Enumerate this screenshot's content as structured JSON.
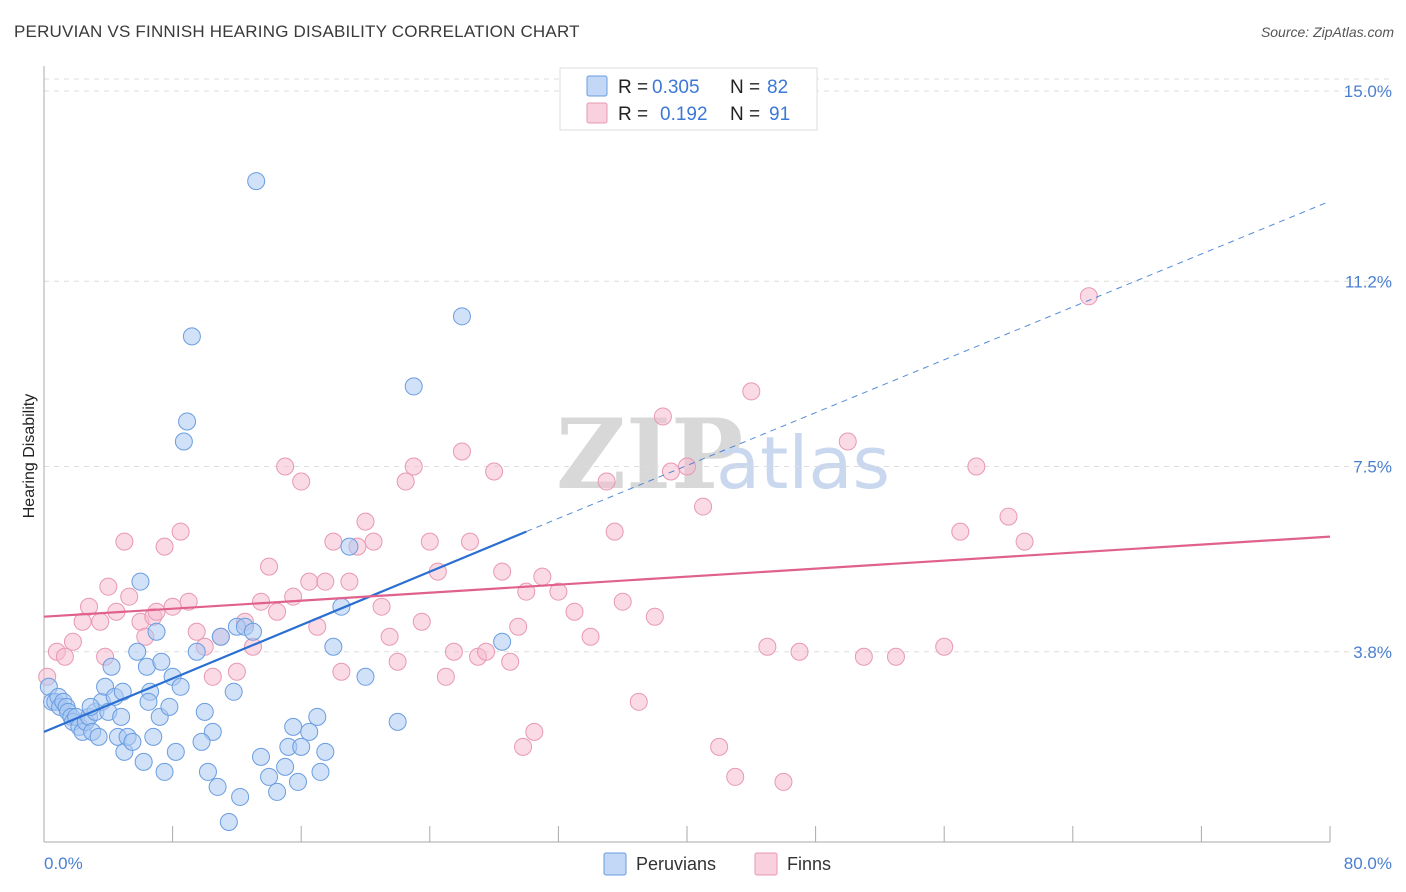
{
  "title": "PERUVIAN VS FINNISH HEARING DISABILITY CORRELATION CHART",
  "source": "Source: ZipAtlas.com",
  "watermark": {
    "zip": "ZIP",
    "atlas": "atlas"
  },
  "colors": {
    "peruvian_fill": "#a9c8f2",
    "peruvian_stroke": "#6a9de0",
    "peruvian_line": "#2a6fd1",
    "finn_fill": "#f6bccf",
    "finn_stroke": "#e898b4",
    "finn_line": "#e0608e",
    "grid": "#dddddd",
    "tick_label": "#4a7fd0"
  },
  "legend": {
    "rows": [
      {
        "r_label": "R =",
        "r_value": "0.305",
        "n_label": "N =",
        "n_value": "82"
      },
      {
        "r_label": "R =",
        "r_value": "0.192",
        "n_label": "N =",
        "n_value": "91"
      }
    ]
  },
  "chart_data": {
    "type": "scatter",
    "xlabel": "",
    "ylabel": "Hearing Disability",
    "xlim": [
      0,
      80
    ],
    "ylim": [
      0,
      15.5
    ],
    "x_tick_labels": {
      "left": "0.0%",
      "right": "80.0%"
    },
    "y_ticks": [
      {
        "value": 3.8,
        "label": "3.8%"
      },
      {
        "value": 7.5,
        "label": "7.5%"
      },
      {
        "value": 11.2,
        "label": "11.2%"
      },
      {
        "value": 15.0,
        "label": "15.0%"
      }
    ],
    "grid": "horizontal dashed",
    "series": [
      {
        "name": "Peruvians",
        "r": 0.305,
        "n": 82,
        "trend": {
          "x0": 0,
          "y0": 2.2,
          "x1": 30,
          "y1": 6.2,
          "dashed_to_x": 80,
          "dashed_to_y": 12.8
        },
        "points": [
          [
            0.3,
            3.1
          ],
          [
            0.5,
            2.8
          ],
          [
            0.7,
            2.8
          ],
          [
            0.9,
            2.9
          ],
          [
            1.0,
            2.7
          ],
          [
            1.2,
            2.8
          ],
          [
            1.4,
            2.7
          ],
          [
            1.5,
            2.6
          ],
          [
            1.7,
            2.5
          ],
          [
            1.8,
            2.4
          ],
          [
            2.0,
            2.5
          ],
          [
            2.2,
            2.3
          ],
          [
            2.4,
            2.2
          ],
          [
            2.6,
            2.4
          ],
          [
            2.8,
            2.5
          ],
          [
            3.0,
            2.2
          ],
          [
            3.2,
            2.6
          ],
          [
            3.4,
            2.1
          ],
          [
            3.6,
            2.8
          ],
          [
            3.8,
            3.1
          ],
          [
            4.0,
            2.6
          ],
          [
            4.2,
            3.5
          ],
          [
            4.4,
            2.9
          ],
          [
            4.6,
            2.1
          ],
          [
            4.8,
            2.5
          ],
          [
            5.0,
            1.8
          ],
          [
            5.2,
            2.1
          ],
          [
            5.5,
            2.0
          ],
          [
            5.8,
            3.8
          ],
          [
            6.0,
            5.2
          ],
          [
            6.2,
            1.6
          ],
          [
            6.4,
            3.5
          ],
          [
            6.6,
            3.0
          ],
          [
            6.8,
            2.1
          ],
          [
            7.0,
            4.2
          ],
          [
            7.2,
            2.5
          ],
          [
            7.5,
            1.4
          ],
          [
            7.8,
            2.7
          ],
          [
            8.0,
            3.3
          ],
          [
            8.2,
            1.8
          ],
          [
            8.5,
            3.1
          ],
          [
            8.7,
            8.0
          ],
          [
            8.9,
            8.4
          ],
          [
            9.2,
            10.1
          ],
          [
            9.5,
            3.8
          ],
          [
            10.0,
            2.6
          ],
          [
            10.2,
            1.4
          ],
          [
            10.5,
            2.2
          ],
          [
            10.8,
            1.1
          ],
          [
            11.0,
            4.1
          ],
          [
            11.5,
            0.4
          ],
          [
            12.0,
            4.3
          ],
          [
            12.5,
            4.3
          ],
          [
            13.0,
            4.2
          ],
          [
            13.5,
            1.7
          ],
          [
            14.0,
            1.3
          ],
          [
            14.5,
            1.0
          ],
          [
            15.0,
            1.5
          ],
          [
            15.2,
            1.9
          ],
          [
            15.5,
            2.3
          ],
          [
            16.0,
            1.9
          ],
          [
            16.5,
            2.2
          ],
          [
            17.0,
            2.5
          ],
          [
            17.5,
            1.8
          ],
          [
            18.0,
            3.9
          ],
          [
            18.5,
            4.7
          ],
          [
            19.0,
            5.9
          ],
          [
            13.2,
            13.2
          ],
          [
            15.8,
            1.2
          ],
          [
            20.0,
            3.3
          ],
          [
            22.0,
            2.4
          ],
          [
            23.0,
            9.1
          ],
          [
            26.0,
            10.5
          ],
          [
            28.5,
            4.0
          ],
          [
            6.5,
            2.8
          ],
          [
            9.8,
            2.0
          ],
          [
            11.8,
            3.0
          ],
          [
            2.9,
            2.7
          ],
          [
            4.9,
            3.0
          ],
          [
            7.3,
            3.6
          ],
          [
            12.2,
            0.9
          ],
          [
            17.2,
            1.4
          ]
        ]
      },
      {
        "name": "Finns",
        "r": 0.192,
        "n": 91,
        "trend": {
          "x0": 0,
          "y0": 4.5,
          "x1": 80,
          "y1": 6.1
        },
        "points": [
          [
            0.2,
            3.3
          ],
          [
            0.8,
            3.8
          ],
          [
            1.3,
            3.7
          ],
          [
            1.8,
            4.0
          ],
          [
            2.4,
            4.4
          ],
          [
            2.8,
            4.7
          ],
          [
            3.5,
            4.4
          ],
          [
            3.8,
            3.7
          ],
          [
            4.0,
            5.1
          ],
          [
            4.5,
            4.6
          ],
          [
            5.0,
            6.0
          ],
          [
            5.3,
            4.9
          ],
          [
            6.0,
            4.4
          ],
          [
            6.3,
            4.1
          ],
          [
            6.8,
            4.5
          ],
          [
            7.0,
            4.6
          ],
          [
            7.5,
            5.9
          ],
          [
            8.0,
            4.7
          ],
          [
            8.5,
            6.2
          ],
          [
            9.0,
            4.8
          ],
          [
            9.5,
            4.2
          ],
          [
            10.0,
            3.9
          ],
          [
            10.5,
            3.3
          ],
          [
            11.0,
            4.1
          ],
          [
            12.0,
            3.4
          ],
          [
            12.5,
            4.4
          ],
          [
            13.0,
            3.9
          ],
          [
            13.5,
            4.8
          ],
          [
            14.0,
            5.5
          ],
          [
            14.5,
            4.6
          ],
          [
            15.0,
            7.5
          ],
          [
            15.5,
            4.9
          ],
          [
            16.0,
            7.2
          ],
          [
            16.5,
            5.2
          ],
          [
            17.0,
            4.3
          ],
          [
            17.5,
            5.2
          ],
          [
            18.0,
            6.0
          ],
          [
            18.5,
            3.4
          ],
          [
            19.0,
            5.2
          ],
          [
            19.5,
            5.9
          ],
          [
            20.0,
            6.4
          ],
          [
            20.5,
            6.0
          ],
          [
            21.0,
            4.7
          ],
          [
            21.5,
            4.1
          ],
          [
            22.0,
            3.6
          ],
          [
            22.5,
            7.2
          ],
          [
            23.0,
            7.5
          ],
          [
            23.5,
            4.4
          ],
          [
            24.0,
            6.0
          ],
          [
            24.5,
            5.4
          ],
          [
            25.0,
            3.3
          ],
          [
            25.5,
            3.8
          ],
          [
            26.0,
            7.8
          ],
          [
            26.5,
            6.0
          ],
          [
            27.0,
            3.7
          ],
          [
            27.5,
            3.8
          ],
          [
            28.0,
            7.4
          ],
          [
            28.5,
            5.4
          ],
          [
            29.0,
            3.6
          ],
          [
            29.5,
            4.3
          ],
          [
            30.0,
            5.0
          ],
          [
            30.5,
            2.2
          ],
          [
            31.0,
            5.3
          ],
          [
            32.0,
            5.0
          ],
          [
            33.0,
            4.6
          ],
          [
            34.0,
            4.1
          ],
          [
            35.0,
            7.2
          ],
          [
            35.5,
            6.2
          ],
          [
            36.0,
            4.8
          ],
          [
            37.0,
            2.8
          ],
          [
            38.0,
            4.5
          ],
          [
            38.5,
            8.5
          ],
          [
            39.0,
            7.4
          ],
          [
            40.0,
            7.5
          ],
          [
            41.0,
            6.7
          ],
          [
            42.0,
            1.9
          ],
          [
            43.0,
            1.3
          ],
          [
            44.0,
            9.0
          ],
          [
            45.0,
            3.9
          ],
          [
            46.0,
            1.2
          ],
          [
            47.0,
            3.8
          ],
          [
            50.0,
            8.0
          ],
          [
            51.0,
            3.7
          ],
          [
            53.0,
            3.7
          ],
          [
            56.0,
            3.9
          ],
          [
            57.0,
            6.2
          ],
          [
            58.0,
            7.5
          ],
          [
            60.0,
            6.5
          ],
          [
            61.0,
            6.0
          ],
          [
            65.0,
            10.9
          ],
          [
            29.8,
            1.9
          ]
        ]
      }
    ]
  },
  "bottom_legend": [
    "Peruvians",
    "Finns"
  ]
}
